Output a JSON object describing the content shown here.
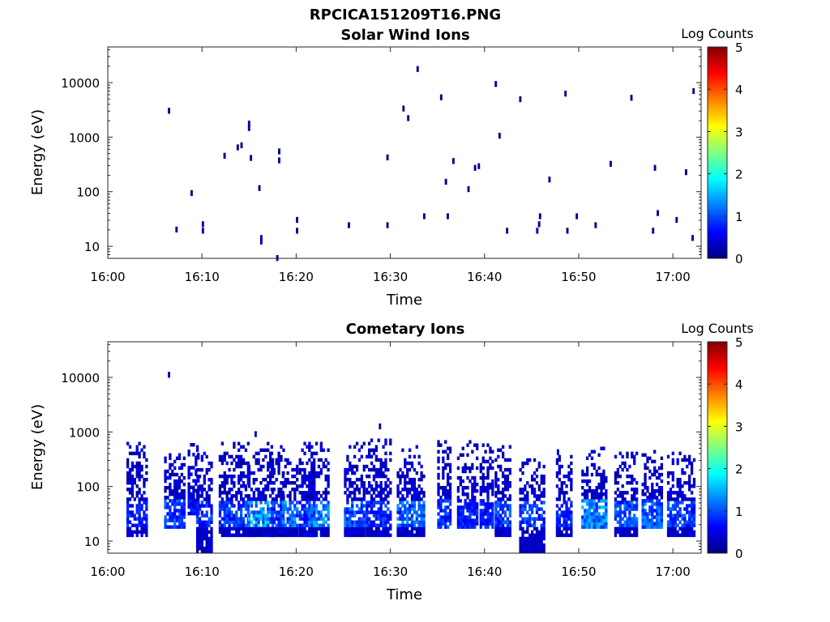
{
  "figure_title": "RPCICA151209T16.PNG",
  "colorbar": {
    "label": "Log Counts",
    "ticks": [
      "0",
      "1",
      "2",
      "3",
      "4",
      "5"
    ],
    "range": [
      0,
      5
    ],
    "colormap": "jet"
  },
  "chart_data": [
    {
      "type": "heatmap",
      "title": "Solar Wind Ions",
      "xlabel": "Time",
      "ylabel": "Energy (eV)",
      "y_scale": "log",
      "ylim": [
        6,
        45000
      ],
      "xlim": [
        "16:00",
        "17:03"
      ],
      "xtick_labels": [
        "16:00",
        "16:10",
        "16:20",
        "16:30",
        "16:40",
        "16:50",
        "17:00"
      ],
      "ytick_labels": [
        "10",
        "100",
        "1000",
        "10000"
      ],
      "points": [
        {
          "t": 6.5,
          "e": 3000,
          "v": 0.1
        },
        {
          "t": 7.3,
          "e": 20,
          "v": 0.1
        },
        {
          "t": 8.9,
          "e": 93,
          "v": 0.1
        },
        {
          "t": 10.1,
          "e": 25,
          "v": 0.2
        },
        {
          "t": 10.1,
          "e": 19,
          "v": 0.2
        },
        {
          "t": 12.4,
          "e": 450,
          "v": 0.1
        },
        {
          "t": 13.8,
          "e": 640,
          "v": 0.1
        },
        {
          "t": 14.2,
          "e": 700,
          "v": 0.1
        },
        {
          "t": 15.0,
          "e": 1750,
          "v": 0.2
        },
        {
          "t": 15.0,
          "e": 1450,
          "v": 0.2
        },
        {
          "t": 15.2,
          "e": 410,
          "v": 0.1
        },
        {
          "t": 16.1,
          "e": 115,
          "v": 0.1
        },
        {
          "t": 16.3,
          "e": 14,
          "v": 0.2
        },
        {
          "t": 16.3,
          "e": 12,
          "v": 0.2
        },
        {
          "t": 18.0,
          "e": 6,
          "v": 0.1
        },
        {
          "t": 18.2,
          "e": 540,
          "v": 0.1
        },
        {
          "t": 18.2,
          "e": 370,
          "v": 0.2
        },
        {
          "t": 20.1,
          "e": 30,
          "v": 0.1
        },
        {
          "t": 20.1,
          "e": 19,
          "v": 0.1
        },
        {
          "t": 25.6,
          "e": 24,
          "v": 0.1
        },
        {
          "t": 29.7,
          "e": 24,
          "v": 0.1
        },
        {
          "t": 29.7,
          "e": 420,
          "v": 0.1
        },
        {
          "t": 31.4,
          "e": 3300,
          "v": 0.1
        },
        {
          "t": 31.9,
          "e": 2200,
          "v": 0.1
        },
        {
          "t": 32.9,
          "e": 17500,
          "v": 0.1
        },
        {
          "t": 33.6,
          "e": 35,
          "v": 0.1
        },
        {
          "t": 35.4,
          "e": 5300,
          "v": 0.1
        },
        {
          "t": 35.9,
          "e": 150,
          "v": 0.1
        },
        {
          "t": 36.1,
          "e": 35,
          "v": 0.1
        },
        {
          "t": 36.7,
          "e": 360,
          "v": 0.1
        },
        {
          "t": 38.3,
          "e": 110,
          "v": 0.1
        },
        {
          "t": 39.0,
          "e": 270,
          "v": 0.1
        },
        {
          "t": 39.4,
          "e": 290,
          "v": 0.1
        },
        {
          "t": 41.2,
          "e": 9300,
          "v": 0.1
        },
        {
          "t": 41.6,
          "e": 1050,
          "v": 0.1
        },
        {
          "t": 42.4,
          "e": 19,
          "v": 0.1
        },
        {
          "t": 43.8,
          "e": 4900,
          "v": 0.1
        },
        {
          "t": 45.6,
          "e": 19,
          "v": 0.2
        },
        {
          "t": 45.8,
          "e": 25,
          "v": 0.1
        },
        {
          "t": 45.9,
          "e": 35,
          "v": 0.1
        },
        {
          "t": 46.9,
          "e": 165,
          "v": 0.1
        },
        {
          "t": 48.6,
          "e": 6200,
          "v": 0.1
        },
        {
          "t": 48.8,
          "e": 19,
          "v": 0.1
        },
        {
          "t": 49.8,
          "e": 35,
          "v": 0.1
        },
        {
          "t": 51.8,
          "e": 24,
          "v": 0.1
        },
        {
          "t": 53.4,
          "e": 320,
          "v": 0.1
        },
        {
          "t": 55.6,
          "e": 5200,
          "v": 0.1
        },
        {
          "t": 57.9,
          "e": 19,
          "v": 0.1
        },
        {
          "t": 58.1,
          "e": 270,
          "v": 0.1
        },
        {
          "t": 58.4,
          "e": 40,
          "v": 0.1
        },
        {
          "t": 60.4,
          "e": 30,
          "v": 0.1
        },
        {
          "t": 61.4,
          "e": 225,
          "v": 0.1
        },
        {
          "t": 62.1,
          "e": 14,
          "v": 0.1
        },
        {
          "t": 62.2,
          "e": 6900,
          "v": 0.1
        }
      ]
    },
    {
      "type": "heatmap",
      "title": "Cometary Ions",
      "xlabel": "Time",
      "ylabel": "Energy (eV)",
      "y_scale": "log",
      "ylim": [
        6,
        45000
      ],
      "xlim": [
        "16:00",
        "17:03"
      ],
      "xtick_labels": [
        "16:00",
        "16:10",
        "16:20",
        "16:30",
        "16:40",
        "16:50",
        "17:00"
      ],
      "ytick_labels": [
        "10",
        "100",
        "1000",
        "10000"
      ],
      "points": [
        {
          "t": 6.5,
          "e": 11000,
          "v": 0.2
        },
        {
          "t": 28.9,
          "e": 1250,
          "v": 0.2
        },
        {
          "t": 15.7,
          "e": 900,
          "v": 0.3
        },
        {
          "t": 47.8,
          "e": 420,
          "v": 0.2
        }
      ],
      "bursts": [
        {
          "t0": 2.1,
          "t1": 4.2,
          "top": 600,
          "low": 12,
          "peak": 0.9
        },
        {
          "t0": 6.1,
          "t1": 8.3,
          "top": 450,
          "low": 17,
          "peak": 1.1
        },
        {
          "t0": 8.6,
          "t1": 9.7,
          "top": 550,
          "low": 30,
          "peak": 0.8
        },
        {
          "t0": 9.5,
          "t1": 11.2,
          "top": 550,
          "low": 6,
          "peak": 1.0
        },
        {
          "t0": 11.9,
          "t1": 15.0,
          "top": 620,
          "low": 12,
          "peak": 1.1
        },
        {
          "t0": 15.0,
          "t1": 17.6,
          "top": 620,
          "low": 12,
          "peak": 1.6
        },
        {
          "t0": 17.4,
          "t1": 18.8,
          "top": 580,
          "low": 12,
          "peak": 1.0
        },
        {
          "t0": 18.6,
          "t1": 20.2,
          "top": 300,
          "low": 12,
          "peak": 1.4
        },
        {
          "t0": 20.4,
          "t1": 21.9,
          "top": 580,
          "low": 12,
          "peak": 1.1
        },
        {
          "t0": 21.4,
          "t1": 23.4,
          "top": 600,
          "low": 12,
          "peak": 1.5
        },
        {
          "t0": 25.2,
          "t1": 27.4,
          "top": 600,
          "low": 12,
          "peak": 1.2
        },
        {
          "t0": 27.5,
          "t1": 30.2,
          "top": 680,
          "low": 12,
          "peak": 1.0
        },
        {
          "t0": 30.8,
          "t1": 33.6,
          "top": 520,
          "low": 12,
          "peak": 1.3
        },
        {
          "t0": 35.1,
          "t1": 36.4,
          "top": 620,
          "low": 17,
          "peak": 1.0
        },
        {
          "t0": 37.2,
          "t1": 39.2,
          "top": 620,
          "low": 17,
          "peak": 0.9
        },
        {
          "t0": 39.6,
          "t1": 41.0,
          "top": 600,
          "low": 17,
          "peak": 0.9
        },
        {
          "t0": 41.2,
          "t1": 42.8,
          "top": 560,
          "low": 12,
          "peak": 1.1
        },
        {
          "t0": 43.8,
          "t1": 46.4,
          "top": 320,
          "low": 6,
          "peak": 1.1
        },
        {
          "t0": 47.7,
          "t1": 49.4,
          "top": 350,
          "low": 12,
          "peak": 1.0
        },
        {
          "t0": 50.4,
          "t1": 53.1,
          "top": 500,
          "low": 17,
          "peak": 1.5
        },
        {
          "t0": 53.9,
          "t1": 56.2,
          "top": 430,
          "low": 12,
          "peak": 1.2
        },
        {
          "t0": 56.8,
          "t1": 59.0,
          "top": 450,
          "low": 17,
          "peak": 1.3
        },
        {
          "t0": 59.5,
          "t1": 62.3,
          "top": 380,
          "low": 12,
          "peak": 1.1
        }
      ]
    }
  ]
}
